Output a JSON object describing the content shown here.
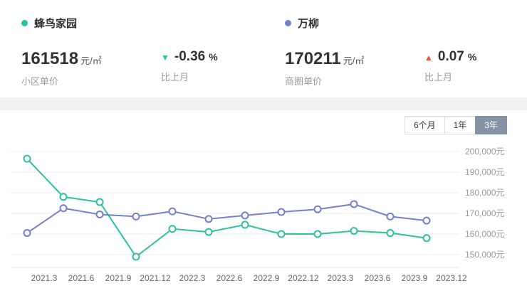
{
  "header": {
    "left": {
      "name": "蜂鸟家园",
      "value": "161518",
      "unit": "元/㎡",
      "label": "小区单价",
      "arrow": "▼",
      "change": "-0.36",
      "percent_sign": "%",
      "change_label": "比上月"
    },
    "right": {
      "name": "万柳",
      "value": "170211",
      "unit": "元/㎡",
      "label": "商圈单价",
      "arrow": "▲",
      "change": "0.07",
      "percent_sign": "%",
      "change_label": "比上月"
    }
  },
  "range_buttons": [
    {
      "label": "6个月",
      "active": false
    },
    {
      "label": "1年",
      "active": false
    },
    {
      "label": "3年",
      "active": true
    }
  ],
  "colors": {
    "community_green": "#2fc0a0",
    "district_blue": "#7381cb",
    "up_red": "#e8503a",
    "active_button_bg": "#8693a5",
    "grid": "#ededed",
    "axis_line": "#e3e3e3",
    "y_tick_text": "#999999",
    "x_tick_text": "#666666"
  },
  "chart_data": {
    "type": "line",
    "title": "",
    "xlabel": "",
    "ylabel": "",
    "unit": "元",
    "grid": true,
    "legend_position": "none",
    "ylim": [
      145000,
      205000
    ],
    "categories": [
      "2021.3",
      "2021.6",
      "2021.9",
      "2021.12",
      "2022.3",
      "2022.6",
      "2022.9",
      "2022.12",
      "2023.3",
      "2023.6",
      "2023.9",
      "2023.12"
    ],
    "series": [
      {
        "name": "蜂鸟家园",
        "color": "#2fc0a0",
        "values": [
          196500,
          178000,
          175500,
          149000,
          162500,
          161000,
          164500,
          160000,
          160000,
          161500,
          160500,
          158000
        ]
      },
      {
        "name": "万柳",
        "color": "#7381cb",
        "values": [
          160500,
          172500,
          169500,
          168500,
          171000,
          167300,
          169000,
          170700,
          172000,
          174500,
          168500,
          166500
        ]
      }
    ],
    "y_ticks": {
      "values": [
        200000,
        190000,
        180000,
        170000,
        160000,
        150000
      ],
      "labels": [
        "200,000元",
        "190,000元",
        "180,000元",
        "170,000元",
        "160,000元",
        "150,000元"
      ]
    }
  }
}
